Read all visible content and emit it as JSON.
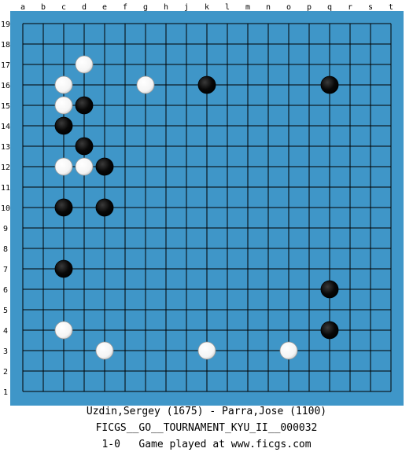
{
  "board": {
    "size": 19,
    "background_color": "#3f96c8",
    "frame_color": "#ffffff",
    "line_color": "#000000",
    "column_labels": [
      "a",
      "b",
      "c",
      "d",
      "e",
      "f",
      "g",
      "h",
      "j",
      "k",
      "l",
      "m",
      "n",
      "o",
      "p",
      "q",
      "r",
      "s",
      "t"
    ],
    "row_labels": [
      "19",
      "18",
      "17",
      "16",
      "15",
      "14",
      "13",
      "12",
      "11",
      "10",
      "9",
      "8",
      "7",
      "6",
      "5",
      "4",
      "3",
      "2",
      "1"
    ],
    "stones": [
      {
        "color": "white",
        "point": "d17"
      },
      {
        "color": "white",
        "point": "c16"
      },
      {
        "color": "white",
        "point": "g16"
      },
      {
        "color": "black",
        "point": "k16"
      },
      {
        "color": "black",
        "point": "q16"
      },
      {
        "color": "white",
        "point": "c15"
      },
      {
        "color": "black",
        "point": "d15"
      },
      {
        "color": "black",
        "point": "c14"
      },
      {
        "color": "black",
        "point": "d13"
      },
      {
        "color": "white",
        "point": "c12"
      },
      {
        "color": "white",
        "point": "d12"
      },
      {
        "color": "black",
        "point": "e12"
      },
      {
        "color": "black",
        "point": "c10"
      },
      {
        "color": "black",
        "point": "e10"
      },
      {
        "color": "black",
        "point": "c7"
      },
      {
        "color": "black",
        "point": "q6"
      },
      {
        "color": "white",
        "point": "c4"
      },
      {
        "color": "black",
        "point": "q4"
      },
      {
        "color": "white",
        "point": "e3"
      },
      {
        "color": "white",
        "point": "k3"
      },
      {
        "color": "white",
        "point": "o3"
      }
    ]
  },
  "caption": {
    "players": "Uzdin,Sergey (1675) - Parra,Jose (1100)",
    "event": "FICGS__GO__TOURNAMENT_KYU_II__000032",
    "result": "1-0   Game played at www.ficgs.com"
  }
}
